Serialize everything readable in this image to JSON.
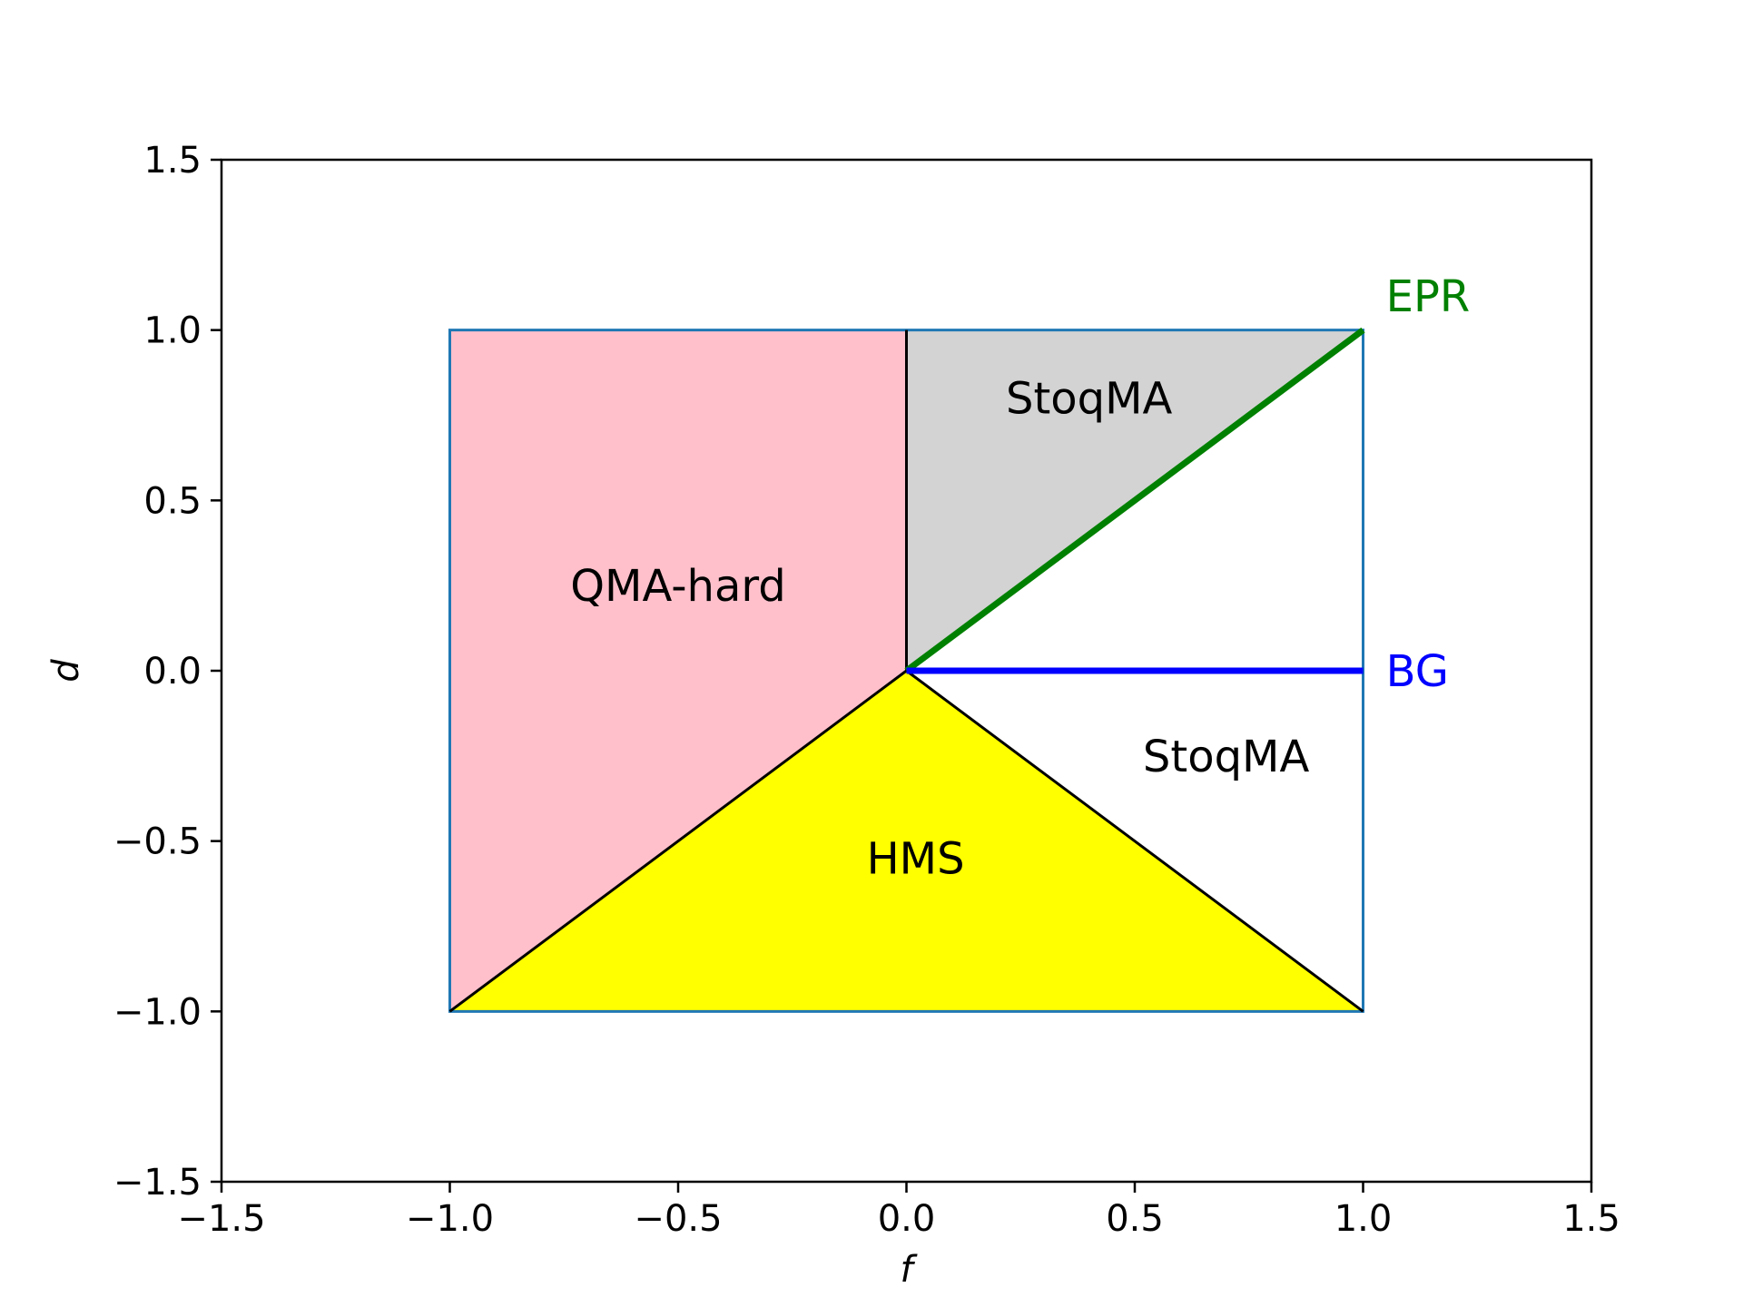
{
  "chart_data": {
    "type": "area",
    "title": "",
    "xlabel": "f",
    "ylabel": "d",
    "xlim": [
      -1.5,
      1.5
    ],
    "ylim": [
      -1.5,
      1.5
    ],
    "xticks": [
      -1.5,
      -1.0,
      -0.5,
      0.0,
      0.5,
      1.0,
      1.5
    ],
    "yticks": [
      -1.5,
      -1.0,
      -0.5,
      0.0,
      0.5,
      1.0,
      1.5
    ],
    "xtick_labels": [
      "−1.5",
      "−1.0",
      "−0.5",
      "0.0",
      "0.5",
      "1.0",
      "1.5"
    ],
    "ytick_labels": [
      "−1.5",
      "−1.0",
      "−0.5",
      "0.0",
      "0.5",
      "1.0",
      "1.5"
    ],
    "grid": false,
    "boundary": {
      "color": "#1f77b4",
      "points": [
        [
          -1,
          -1
        ],
        [
          1,
          -1
        ],
        [
          1,
          1
        ],
        [
          -1,
          1
        ]
      ]
    },
    "regions": [
      {
        "label": "QMA-hard",
        "color": "#ffc0cb",
        "polygon": [
          [
            -1,
            1
          ],
          [
            0,
            1
          ],
          [
            0,
            0
          ],
          [
            -1,
            -1
          ]
        ],
        "label_at": [
          -0.5,
          0.25
        ]
      },
      {
        "label": "StoqMA",
        "color": "#d3d3d3",
        "polygon": [
          [
            0,
            1
          ],
          [
            1,
            1
          ],
          [
            0,
            0
          ]
        ],
        "label_at": [
          0.4,
          0.8
        ]
      },
      {
        "label": "HMS",
        "color": "#ffff00",
        "polygon": [
          [
            0,
            0
          ],
          [
            1,
            -1
          ],
          [
            -1,
            -1
          ]
        ],
        "label_at": [
          0.02,
          -0.55
        ]
      },
      {
        "label": "StoqMA",
        "color": "#ffffff",
        "polygon": [
          [
            0,
            0
          ],
          [
            1,
            0
          ],
          [
            1,
            -1
          ]
        ],
        "label_at": [
          0.7,
          -0.25
        ]
      }
    ],
    "divider_lines": [
      {
        "color": "#000000",
        "points": [
          [
            0,
            0
          ],
          [
            0,
            1
          ]
        ]
      },
      {
        "color": "#000000",
        "points": [
          [
            -1,
            -1
          ],
          [
            0,
            0
          ]
        ]
      },
      {
        "color": "#000000",
        "points": [
          [
            0,
            0
          ],
          [
            1,
            -1
          ]
        ]
      }
    ],
    "lines": [
      {
        "name": "EPR",
        "color": "#008000",
        "points": [
          [
            0,
            0
          ],
          [
            1,
            1
          ]
        ],
        "label_at": [
          1.05,
          1.1
        ]
      },
      {
        "name": "BG",
        "color": "#0000ff",
        "points": [
          [
            0,
            0
          ],
          [
            1,
            0
          ]
        ],
        "label_at": [
          1.05,
          0.0
        ]
      }
    ]
  }
}
